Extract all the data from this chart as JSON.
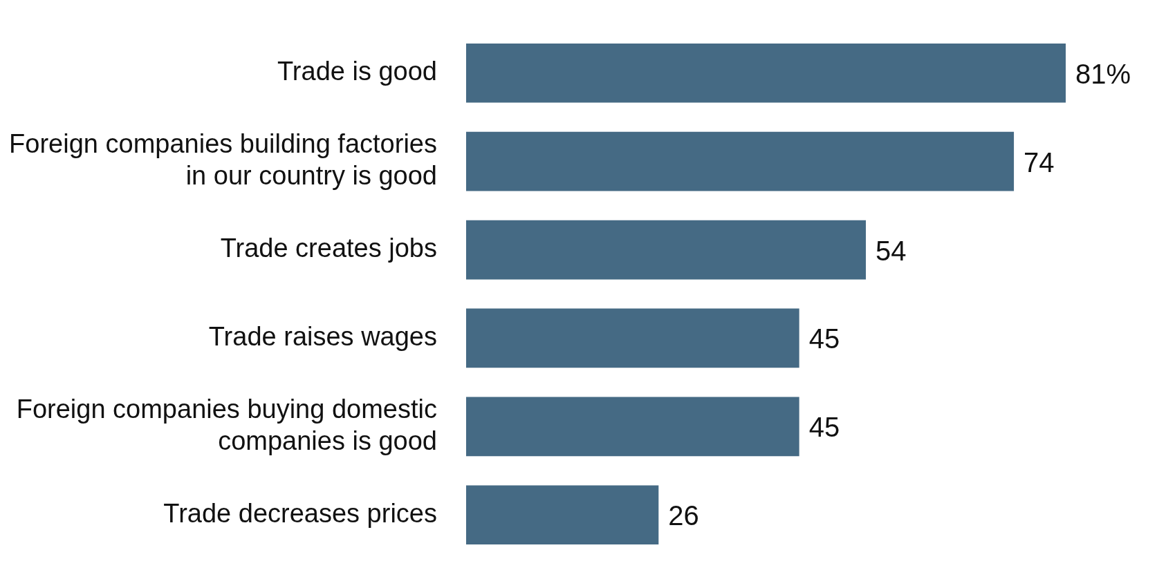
{
  "chart_data": {
    "type": "bar",
    "orientation": "horizontal",
    "categories": [
      "Trade is good",
      "Foreign companies building factories in our country is good",
      "Trade creates jobs",
      "Trade raises wages",
      "Foreign companies buying domestic companies is good",
      "Trade decreases prices"
    ],
    "values": [
      81,
      74,
      54,
      45,
      45,
      26
    ],
    "value_labels": [
      "81%",
      "74",
      "54",
      "45",
      "45",
      "26"
    ],
    "color": "#456a84"
  }
}
